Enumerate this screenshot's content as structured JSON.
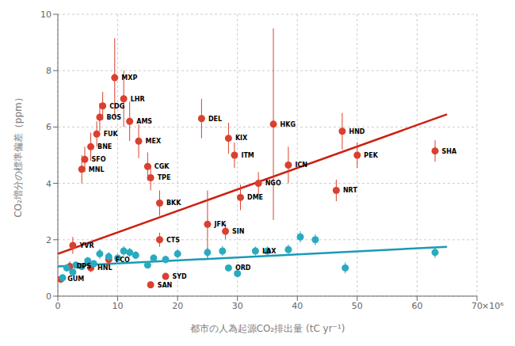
{
  "chart_data": {
    "type": "scatter",
    "xlabel": "都市の人為起源CO₂排出量 (tC yr⁻¹)",
    "ylabel": "CO₂増分の標準偏差（ppm）",
    "xlim": [
      0,
      70
    ],
    "ylim": [
      0,
      10
    ],
    "xticks": [
      0,
      10,
      20,
      30,
      40,
      50,
      60,
      70
    ],
    "yticks": [
      0,
      2,
      4,
      6,
      8,
      10
    ],
    "grid": true,
    "annotations": [
      "×10⁶"
    ],
    "series": [
      {
        "type": "scatter",
        "color": "#d94030",
        "x": [
          0.5,
          2.0,
          5.5,
          2.5,
          4.0,
          4.5,
          5.5,
          6.5,
          7.0,
          7.5,
          9.5,
          11.0,
          12.0,
          13.5,
          15.0,
          15.5,
          17.0,
          17.0,
          8.5,
          15.5,
          18.0,
          24.0,
          25.0,
          28.0,
          28.5,
          29.5,
          30.5,
          33.5,
          36.0,
          38.5,
          46.5,
          47.5,
          50.0,
          63.0
        ],
        "values": [
          0.6,
          1.05,
          1.0,
          1.8,
          4.5,
          4.85,
          5.3,
          5.75,
          6.35,
          6.75,
          7.75,
          7.0,
          6.2,
          5.5,
          4.6,
          4.2,
          3.3,
          2.0,
          1.3,
          0.4,
          0.7,
          6.3,
          2.55,
          2.3,
          5.6,
          5.0,
          3.5,
          4.0,
          6.1,
          4.65,
          3.75,
          5.85,
          5.0,
          5.15
        ],
        "yerr_lo": [
          0.12,
          0.18,
          0.15,
          0.3,
          0.5,
          0.45,
          0.5,
          0.45,
          0.5,
          0.5,
          1.4,
          1.0,
          0.7,
          0.6,
          0.5,
          0.45,
          0.45,
          0.25,
          0.25,
          0.12,
          0.12,
          0.7,
          1.2,
          0.28,
          0.55,
          0.45,
          0.45,
          0.4,
          3.4,
          0.65,
          0.38,
          0.65,
          0.45,
          0.38
        ],
        "yerr_hi": [
          0.12,
          0.18,
          0.15,
          0.3,
          0.5,
          0.45,
          0.5,
          0.45,
          0.5,
          0.5,
          1.4,
          1.0,
          0.7,
          0.6,
          0.5,
          0.45,
          0.45,
          0.25,
          0.25,
          0.12,
          0.12,
          0.7,
          1.2,
          0.28,
          0.55,
          0.45,
          0.45,
          0.4,
          3.4,
          0.65,
          0.38,
          0.65,
          0.45,
          0.38
        ],
        "labels": [
          "GUM",
          "DPS",
          "HNL",
          "YVR",
          "MNL",
          "SFO",
          "BNE",
          "FUK",
          "BOS",
          "CDG",
          "MXP",
          "LHR",
          "AMS",
          "MEX",
          "CGK",
          "TPE",
          "BKK",
          "CTS",
          "FCO",
          "SAN",
          "SYD",
          "DEL",
          "JFK",
          "SIN",
          "KIX",
          "ITM",
          "DME",
          "NGO",
          "HKG",
          "ICN",
          "NRT",
          "HND",
          "PEK",
          "SHA"
        ]
      },
      {
        "type": "scatter",
        "color": "#2aaabf",
        "x": [
          0.8,
          1.5,
          2.5,
          3.0,
          4.0,
          5.0,
          6.0,
          7.0,
          8.5,
          10.0,
          11.0,
          12.0,
          13.0,
          15.0,
          16.0,
          18.0,
          20.0,
          25.0,
          27.5,
          33.0,
          35.0,
          40.5,
          43.0,
          48.0,
          63.0,
          28.5,
          30.0,
          38.5
        ],
        "values": [
          0.65,
          1.0,
          0.85,
          1.1,
          1.05,
          1.25,
          1.15,
          1.5,
          1.4,
          1.35,
          1.6,
          1.55,
          1.45,
          1.1,
          1.35,
          1.3,
          1.5,
          1.55,
          1.6,
          1.6,
          1.6,
          2.1,
          2.0,
          1.0,
          1.55,
          1.0,
          0.8,
          1.65
        ],
        "yerr_lo": [
          0.1,
          0.12,
          0.1,
          0.12,
          0.12,
          0.14,
          0.12,
          0.18,
          0.16,
          0.14,
          0.18,
          0.16,
          0.14,
          0.12,
          0.14,
          0.14,
          0.16,
          0.16,
          0.18,
          0.16,
          0.16,
          0.2,
          0.2,
          0.2,
          0.2,
          0.12,
          0.1,
          0.18
        ],
        "yerr_hi": [
          0.1,
          0.12,
          0.1,
          0.12,
          0.12,
          0.14,
          0.12,
          0.18,
          0.16,
          0.14,
          0.18,
          0.16,
          0.14,
          0.12,
          0.14,
          0.14,
          0.16,
          0.16,
          0.18,
          0.16,
          0.16,
          0.2,
          0.2,
          0.2,
          0.2,
          0.12,
          0.1,
          0.18
        ],
        "labels": [
          null,
          null,
          null,
          null,
          null,
          null,
          null,
          null,
          null,
          null,
          null,
          null,
          null,
          null,
          null,
          null,
          null,
          null,
          null,
          "LAX",
          null,
          null,
          null,
          null,
          null,
          "ORD",
          null,
          null
        ]
      },
      {
        "type": "line",
        "color": "#cc2010",
        "x": [
          0.0,
          65.0
        ],
        "values": [
          1.5,
          6.45
        ]
      },
      {
        "type": "line",
        "color": "#1a9ab5",
        "x": [
          0.0,
          65.0
        ],
        "values": [
          1.05,
          1.75
        ]
      }
    ]
  }
}
